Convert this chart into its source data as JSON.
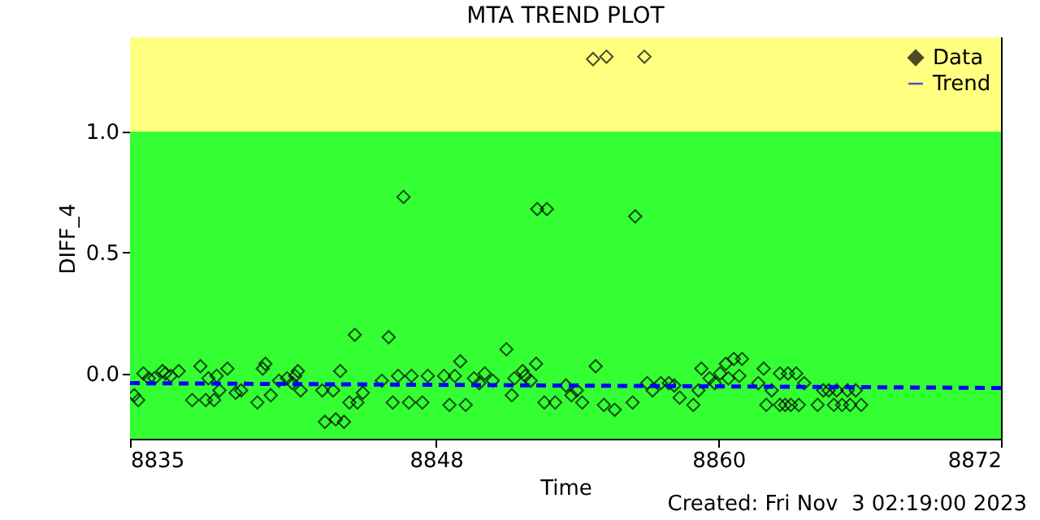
{
  "chart_data": {
    "type": "scatter",
    "title": "MTA TREND PLOT",
    "xlabel": "Time",
    "ylabel": "DIFF_4",
    "annotations": [
      "Created: Fri Nov  3 02:19:00 2023"
    ],
    "xlim": [
      8835,
      8872
    ],
    "xticks": [
      8835,
      8848,
      8860,
      8872
    ],
    "ylim": [
      -0.27,
      1.39
    ],
    "yticks": [
      {
        "value": 0,
        "label": "0.0"
      },
      {
        "value": 0.5,
        "label": "0.5"
      },
      {
        "value": 1,
        "label": "1.0"
      }
    ],
    "grid": false,
    "legend": "top right",
    "bands": [
      {
        "axis": "y",
        "from": -0.27,
        "to": 1.0,
        "color": "#33ff33"
      },
      {
        "axis": "y",
        "from": 1.0,
        "to": 1.39,
        "color": "#ffff80"
      }
    ],
    "series": [
      {
        "name": "Data",
        "type": "scatter",
        "marker": "diamond",
        "color": "#000000",
        "x": [
          8835.18,
          8835.35,
          8835.57,
          8835.8,
          8836.04,
          8836.38,
          8836.5,
          8836.73,
          8837.07,
          8837.64,
          8837.99,
          8838.22,
          8838.33,
          8838.57,
          8838.68,
          8838.8,
          8839.14,
          8839.49,
          8839.72,
          8840.41,
          8840.64,
          8840.75,
          8840.98,
          8841.33,
          8841.67,
          8841.9,
          8842.02,
          8842.13,
          8842.25,
          8843.17,
          8843.28,
          8843.63,
          8843.74,
          8843.93,
          8844.09,
          8844.32,
          8844.55,
          8844.66,
          8844.89,
          8845.7,
          8845.99,
          8846.16,
          8846.39,
          8846.62,
          8846.85,
          8846.96,
          8847.42,
          8847.65,
          8848.34,
          8848.57,
          8848.8,
          8849.03,
          8849.26,
          8849.61,
          8849.84,
          8850.07,
          8850.41,
          8850.99,
          8851.22,
          8851.33,
          8851.68,
          8851.79,
          8852.02,
          8852.25,
          8852.3,
          8852.6,
          8852.71,
          8853.06,
          8853.52,
          8853.75,
          8853.98,
          8854.21,
          8854.67,
          8854.78,
          8855.13,
          8855.24,
          8855.59,
          8856.35,
          8856.46,
          8856.85,
          8856.97,
          8857.2,
          8857.55,
          8857.89,
          8858.12,
          8858.35,
          8858.93,
          8859.15,
          8859.27,
          8859.62,
          8859.84,
          8860.07,
          8860.31,
          8860.42,
          8860.65,
          8860.88,
          8861.0,
          8861.69,
          8861.92,
          8862.03,
          8862.26,
          8862.61,
          8862.61,
          8862.83,
          8862.95,
          8863.07,
          8863.3,
          8863.41,
          8863.64,
          8864.21,
          8864.45,
          8864.68,
          8864.9,
          8865.02,
          8865.25,
          8865.48,
          8865.59,
          8865.83,
          8866.06
        ],
        "values": [
          -0.09,
          -0.11,
          0.0,
          -0.02,
          -0.02,
          0.01,
          0.0,
          -0.01,
          0.01,
          -0.11,
          0.03,
          -0.11,
          -0.02,
          -0.11,
          -0.01,
          -0.07,
          0.02,
          -0.08,
          -0.07,
          -0.12,
          0.02,
          0.04,
          -0.09,
          -0.03,
          -0.02,
          -0.04,
          -0.01,
          0.01,
          -0.07,
          -0.07,
          -0.2,
          -0.07,
          -0.19,
          0.01,
          -0.2,
          -0.12,
          0.16,
          -0.12,
          -0.08,
          -0.03,
          0.15,
          -0.12,
          -0.01,
          0.73,
          -0.12,
          -0.01,
          -0.12,
          -0.01,
          -0.01,
          -0.13,
          -0.01,
          0.05,
          -0.13,
          -0.02,
          -0.04,
          0.0,
          -0.03,
          0.1,
          -0.09,
          -0.02,
          0.01,
          -0.01,
          -0.03,
          0.04,
          0.68,
          -0.12,
          0.68,
          -0.12,
          -0.05,
          -0.09,
          -0.07,
          -0.12,
          1.3,
          0.03,
          -0.13,
          1.31,
          -0.15,
          -0.12,
          0.65,
          1.31,
          -0.04,
          -0.07,
          -0.04,
          -0.04,
          -0.05,
          -0.1,
          -0.13,
          -0.07,
          0.02,
          -0.02,
          -0.04,
          0.0,
          0.04,
          -0.02,
          0.06,
          -0.01,
          0.06,
          -0.04,
          0.02,
          -0.13,
          -0.07,
          0.0,
          -0.13,
          -0.13,
          0.0,
          -0.13,
          0.0,
          -0.13,
          -0.04,
          -0.13,
          -0.07,
          -0.07,
          -0.13,
          -0.07,
          -0.13,
          -0.07,
          -0.13,
          -0.07,
          -0.13
        ]
      },
      {
        "name": "Trend",
        "type": "line",
        "line_style": "dashed",
        "marker": "none",
        "color": "#0000ff",
        "x": [
          8835,
          8872
        ],
        "values": [
          -0.04,
          -0.06
        ]
      }
    ]
  }
}
